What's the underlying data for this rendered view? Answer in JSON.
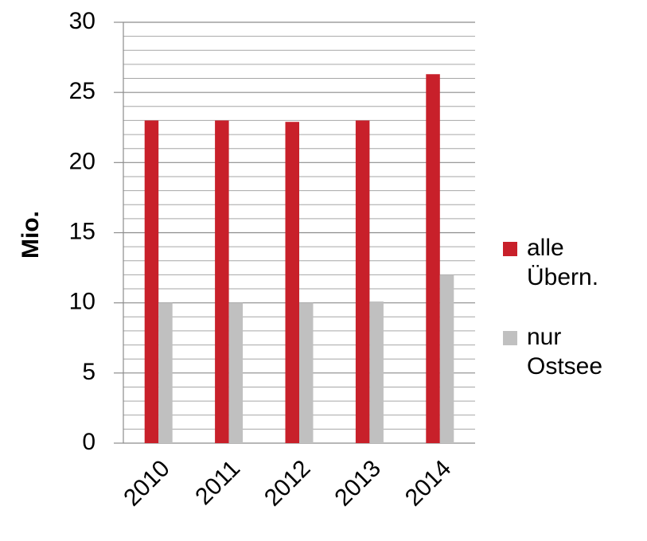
{
  "chart_data": {
    "type": "bar",
    "y_label": "Mio.",
    "categories": [
      "2010",
      "2011",
      "2012",
      "2013",
      "2014"
    ],
    "series": [
      {
        "name": "alle Übern.",
        "color": "#c8202a",
        "values": [
          23.0,
          23.0,
          22.9,
          23.0,
          26.3
        ]
      },
      {
        "name": "nur Ostsee",
        "color": "#c0c0c0",
        "values": [
          10.0,
          10.0,
          10.0,
          10.1,
          12.0
        ]
      }
    ],
    "ylim": [
      0,
      30
    ],
    "yticks": [
      0,
      5,
      10,
      15,
      20,
      25,
      30
    ],
    "minor_yticks": [
      1,
      2,
      3,
      4,
      6,
      7,
      8,
      9,
      11,
      12,
      13,
      14,
      16,
      17,
      18,
      19,
      21,
      22,
      23,
      24,
      26,
      27,
      28,
      29
    ],
    "grid": true,
    "legend": "right"
  }
}
